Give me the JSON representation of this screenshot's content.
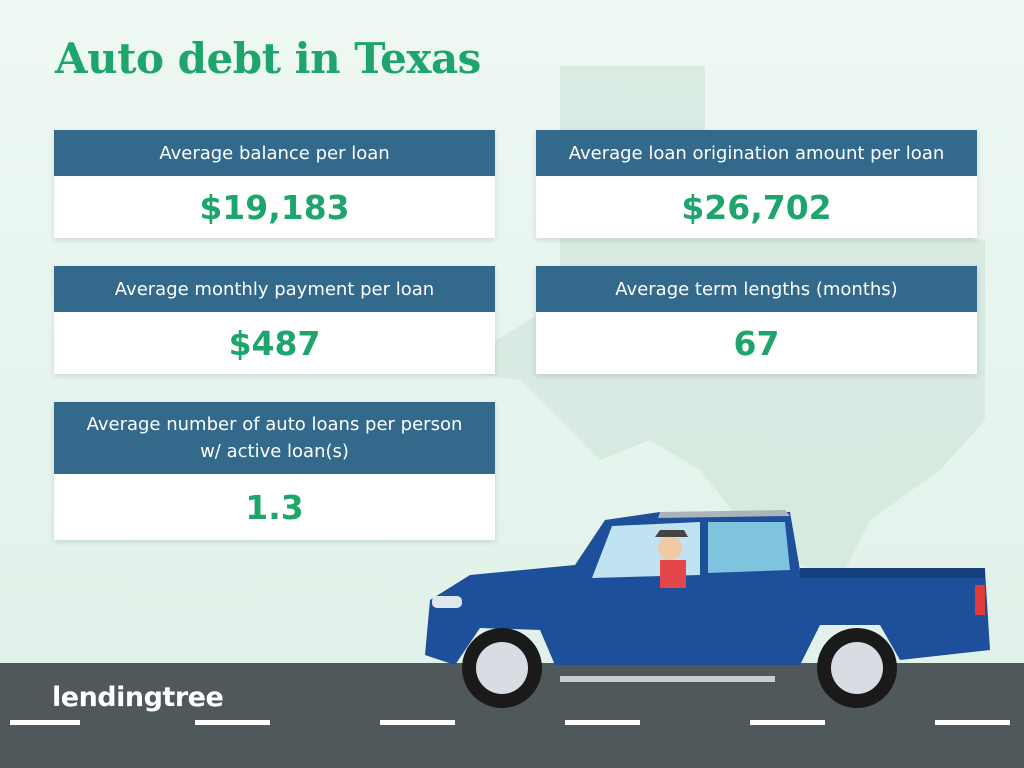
{
  "header": {
    "title": "Auto debt in Texas"
  },
  "cards": [
    {
      "label": [
        "Average balance per loan"
      ],
      "value": "$19,183"
    },
    {
      "label": [
        "Average loan origination amount per loan"
      ],
      "value": "$26,702"
    },
    {
      "label": [
        "Average monthly payment per loan"
      ],
      "value": "$487"
    },
    {
      "label": [
        "Average term lengths (months)"
      ],
      "value": "67"
    },
    {
      "label": [
        "Average number of auto loans per person",
        "w/ active loan(s)"
      ],
      "value": "1.3"
    }
  ],
  "footer": {
    "logo": "lendingtree"
  }
}
